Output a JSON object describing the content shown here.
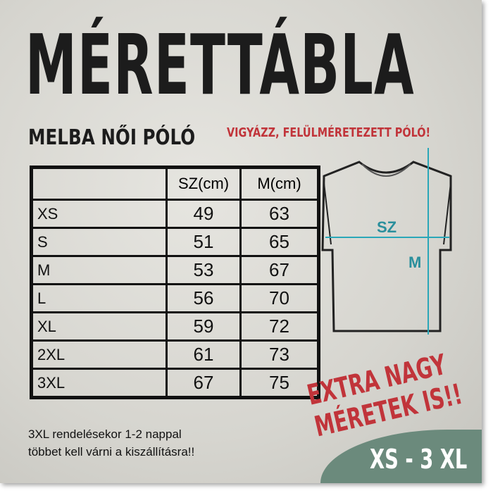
{
  "title": "MÉRETTÁBLA",
  "subtitle": "MELBA NŐI PÓLÓ",
  "warning": "VIGYÁZZ, FELÜLMÉRETEZETT PÓLÓ!",
  "table": {
    "headers": [
      "",
      "SZ(cm)",
      "M(cm)"
    ],
    "rows": [
      [
        "XS",
        "49",
        "63"
      ],
      [
        "S",
        "51",
        "65"
      ],
      [
        "M",
        "53",
        "67"
      ],
      [
        "L",
        "56",
        "70"
      ],
      [
        "XL",
        "59",
        "72"
      ],
      [
        "2XL",
        "61",
        "73"
      ],
      [
        "3XL",
        "67",
        "75"
      ]
    ]
  },
  "diagram": {
    "width_label": "SZ",
    "length_label": "M",
    "measure_color": "#2aa7b8"
  },
  "note": [
    "3XL rendelésekor 1-2 nappal",
    "többet kell várni a kiszállításra!!"
  ],
  "extra": [
    "EXTRA NAGY",
    "MÉRETEK IS!!"
  ],
  "range": "XS - 3 XL",
  "colors": {
    "red": "#c1343a",
    "green": "#6b8a7c"
  }
}
